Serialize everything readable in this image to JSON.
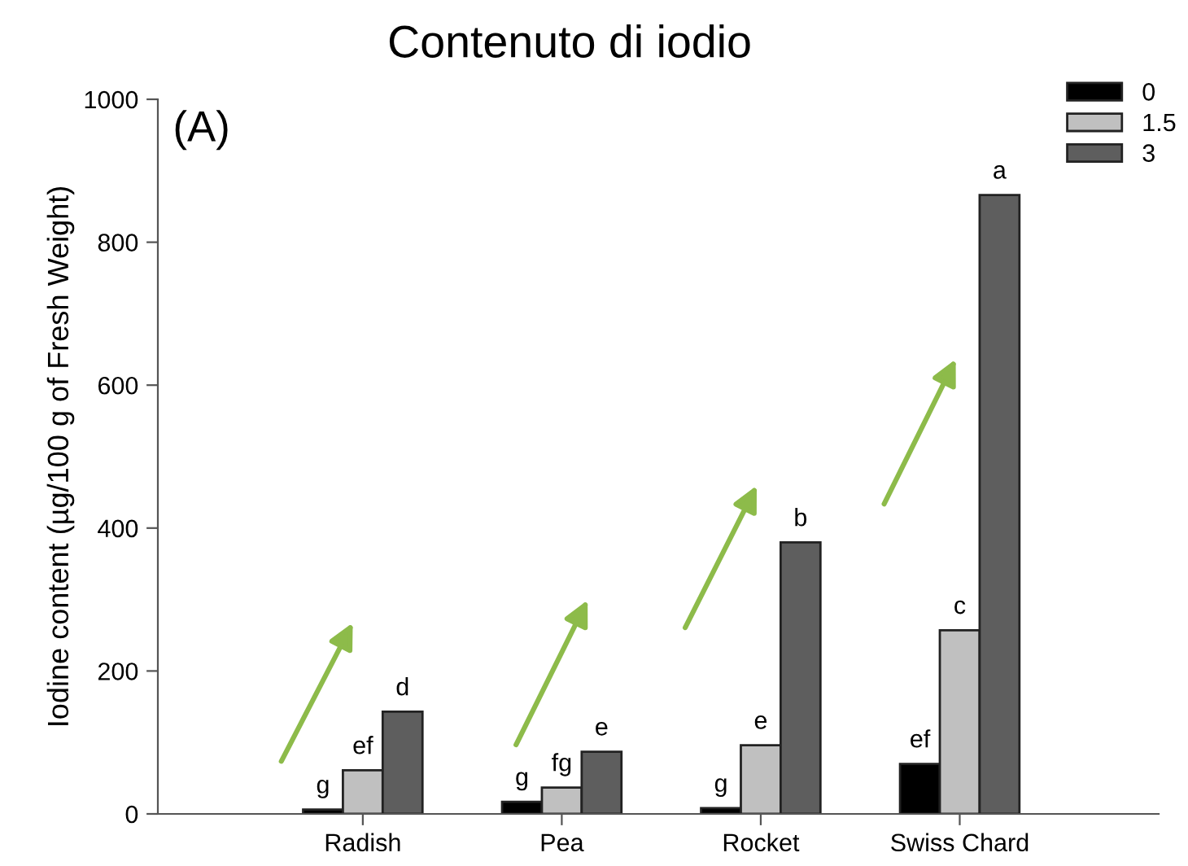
{
  "chart_data": {
    "type": "bar",
    "title": "Contenuto di iodio",
    "ylabel": "Iodine content (µg/100 g of Fresh Weight)",
    "categories": [
      "Radish",
      "Pea",
      "Rocket",
      "Swiss Chard"
    ],
    "series": [
      {
        "name": "0",
        "color": "#000000",
        "values": [
          6,
          17,
          8,
          70
        ]
      },
      {
        "name": "1.5",
        "color": "#c0c0c0",
        "values": [
          61,
          37,
          96,
          257
        ]
      },
      {
        "name": "3",
        "color": "#5e5e5e",
        "values": [
          143,
          87,
          380,
          866
        ]
      }
    ],
    "ylim": [
      0,
      1000
    ],
    "yticks": [
      0,
      200,
      400,
      600,
      800,
      1000
    ],
    "grid": false,
    "legend": "top right",
    "annotations": [
      "(A)",
      "g",
      "ef",
      "d",
      "g",
      "fg",
      "e",
      "g",
      "e",
      "b",
      "ef",
      "c",
      "a"
    ]
  }
}
